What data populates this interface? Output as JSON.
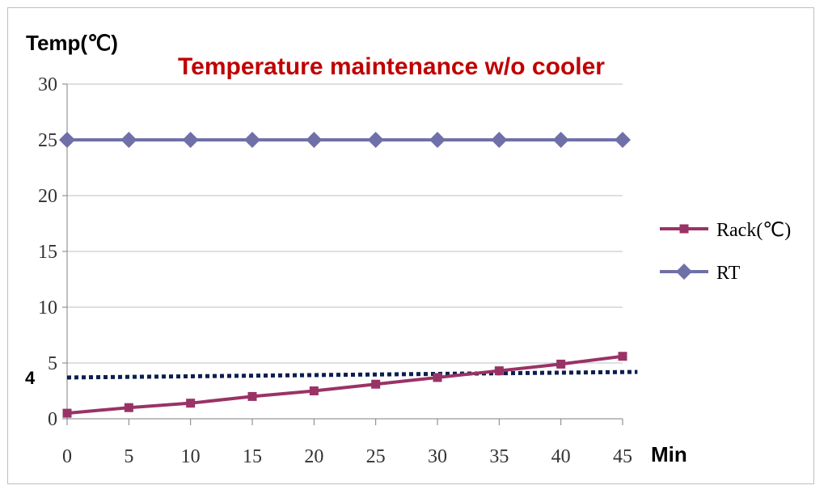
{
  "chart_data": {
    "type": "line",
    "title": "Temperature maintenance w/o cooler",
    "ylabel": "Temp(℃)",
    "xlabel": "Min",
    "x": [
      0,
      5,
      10,
      15,
      20,
      25,
      30,
      35,
      40,
      45
    ],
    "xlim": [
      0,
      45
    ],
    "ylim": [
      0,
      30
    ],
    "yticks": [
      0,
      5,
      10,
      15,
      20,
      25,
      30
    ],
    "grid": "horizontal",
    "legend_position": "right",
    "series": [
      {
        "name": "Rack(℃)",
        "values": [
          0.5,
          1.0,
          1.4,
          2.0,
          2.5,
          3.1,
          3.7,
          4.3,
          4.9,
          5.6
        ],
        "color": "#993366",
        "marker": "square"
      },
      {
        "name": "RT",
        "values": [
          25,
          25,
          25,
          25,
          25,
          25,
          25,
          25,
          25,
          25
        ],
        "color": "#7070A8",
        "marker": "diamond"
      }
    ],
    "reference_line": {
      "label": "4",
      "from": [
        0,
        3.7
      ],
      "to": [
        46.2,
        4.2
      ],
      "style": "dotted",
      "color": "#0b1f4f"
    },
    "colors": {
      "title": "#C00000",
      "grid": "#bfbfbf",
      "axis": "#7f7f7f"
    }
  }
}
